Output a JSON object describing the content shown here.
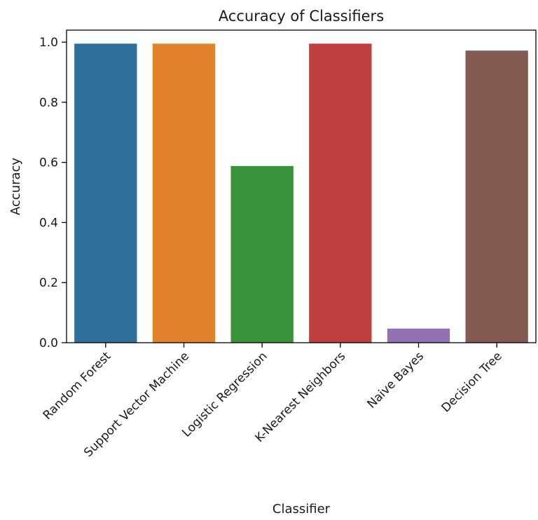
{
  "chart_data": {
    "type": "bar",
    "title": "Accuracy of Classifiers",
    "xlabel": "Classifier",
    "ylabel": "Accuracy",
    "categories": [
      "Random Forest",
      "Support Vector Machine",
      "Logistic Regression",
      "K-Nearest Neighbors",
      "Naive Bayes",
      "Decision Tree"
    ],
    "values": [
      0.995,
      0.995,
      0.588,
      0.995,
      0.047,
      0.972
    ],
    "colors": [
      "#2e6f9e",
      "#e1812c",
      "#3a923a",
      "#c03d3e",
      "#9372b2",
      "#845b53"
    ],
    "ylim": [
      0,
      1.04
    ],
    "yticks": [
      0.0,
      0.2,
      0.4,
      0.6,
      0.8,
      1.0
    ],
    "ytick_labels": [
      "0.0",
      "0.2",
      "0.4",
      "0.6",
      "0.8",
      "1.0"
    ],
    "grid": false,
    "legend": "none"
  }
}
